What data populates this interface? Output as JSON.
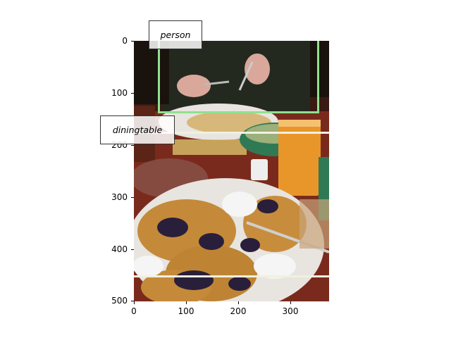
{
  "image": {
    "description_colors": {
      "table": "#7a2a1c",
      "plate": "#e8e4df",
      "pancake": "#c48a3a",
      "blueberry": "#2a1f3a",
      "juice": "#e8962a",
      "shirt": "#23291f",
      "skin": "#d9a89a",
      "bowl": "#2f7a55"
    }
  },
  "axes": {
    "y_ticks": [
      "0",
      "100",
      "200",
      "300",
      "400",
      "500"
    ],
    "x_ticks": [
      "0",
      "100",
      "200",
      "300"
    ]
  },
  "detections": [
    {
      "label": "person",
      "color": "#90e090"
    },
    {
      "label": "diningtable",
      "color": "#f0f0e0"
    }
  ]
}
